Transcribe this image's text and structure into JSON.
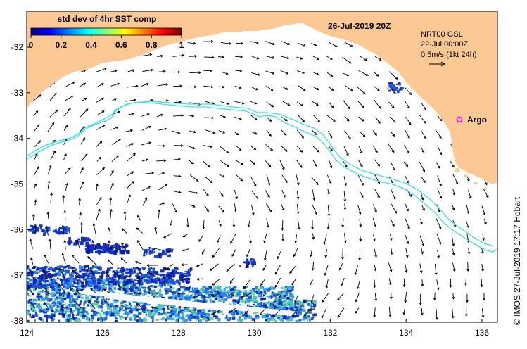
{
  "map": {
    "title_date": "26-Jul-2019 20Z",
    "colorbar": {
      "title": "std dev of 4hr SST comp",
      "ticks": [
        "0",
        "0.2",
        "0.4",
        "0.6",
        "0.8",
        "1"
      ],
      "colors": [
        "#00007f",
        "#0000ff",
        "#007fff",
        "#00ffff",
        "#7fff7f",
        "#ffff00",
        "#ff7f00",
        "#ff0000",
        "#7f0000"
      ]
    },
    "info_box": {
      "line1": "NRT00 GSL",
      "line2": "22-Jul 00:00Z",
      "line3": "0.5m/s (1kt 24h)"
    },
    "argo_label": "Argo",
    "credit": "© IMOS 27-Jul-2019 17:17 Hobart",
    "lon_ticks": [
      "124",
      "126",
      "128",
      "130",
      "132",
      "134",
      "136"
    ],
    "lat_ticks": [
      "-32",
      "-33",
      "-34",
      "-35",
      "-36",
      "-37",
      "-38"
    ],
    "colors": {
      "land": "#fcc994",
      "ocean": "#ffffff",
      "contour": "#33e3e3",
      "argo": "#ff00ff",
      "arrow": "#000000"
    }
  }
}
